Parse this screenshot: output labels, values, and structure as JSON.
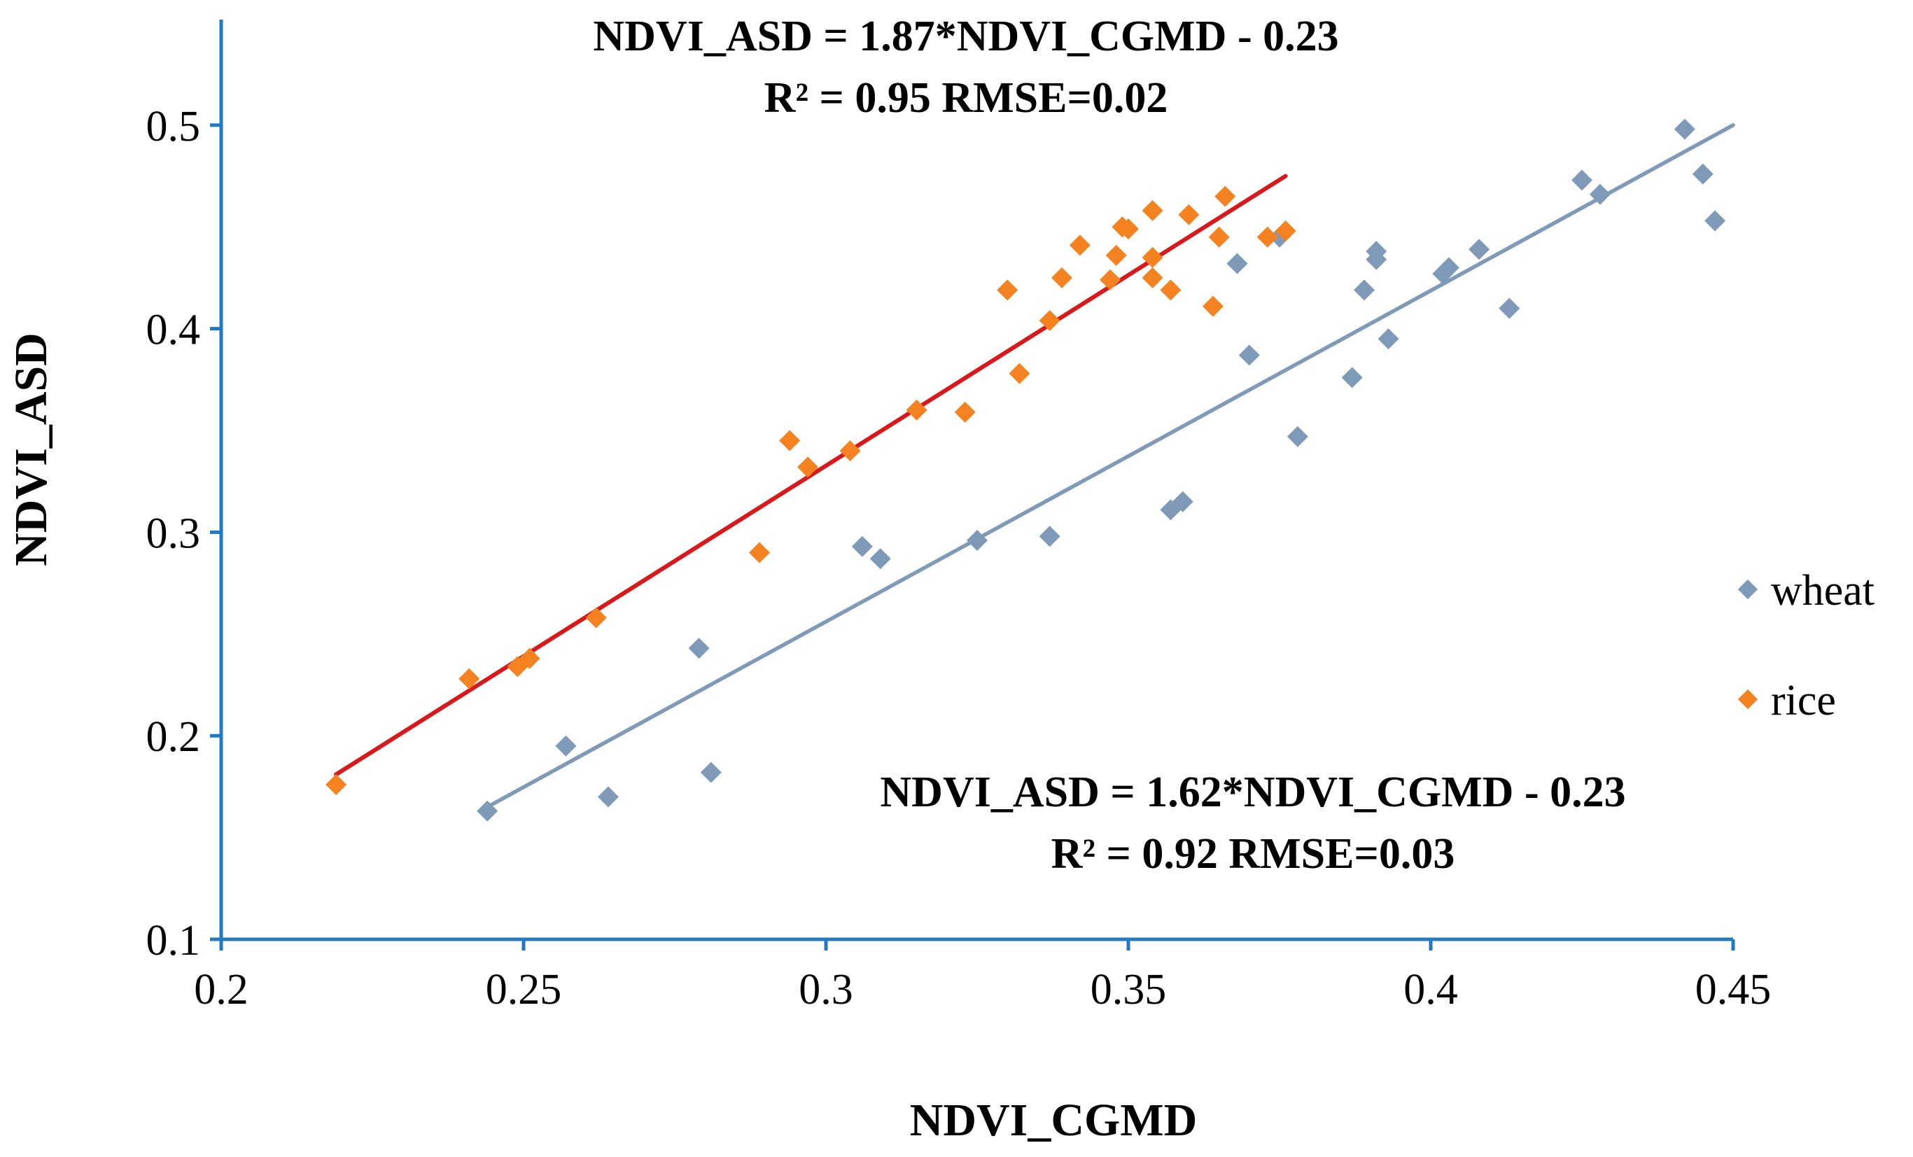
{
  "chart_data": {
    "type": "scatter",
    "title": "",
    "xlabel": "NDVI_CGMD",
    "ylabel": "NDVI_ASD",
    "xlim": [
      0.2,
      0.45
    ],
    "ylim": [
      0.1,
      0.55
    ],
    "x_ticks": [
      0.2,
      0.25,
      0.3,
      0.35,
      0.4,
      0.45
    ],
    "x_tick_labels": [
      "0.2",
      "0.25",
      "0.3",
      "0.35",
      "0.4",
      "0.45"
    ],
    "y_ticks": [
      0.1,
      0.2,
      0.3,
      0.4,
      0.5
    ],
    "y_tick_labels": [
      "0.1",
      "0.2",
      "0.3",
      "0.4",
      "0.5"
    ],
    "grid": false,
    "legend_position": "right",
    "series": [
      {
        "name": "wheat",
        "color": "#7F9AB8",
        "marker": "diamond",
        "points": [
          [
            0.244,
            0.163
          ],
          [
            0.257,
            0.195
          ],
          [
            0.264,
            0.17
          ],
          [
            0.279,
            0.243
          ],
          [
            0.281,
            0.182
          ],
          [
            0.306,
            0.293
          ],
          [
            0.309,
            0.287
          ],
          [
            0.325,
            0.296
          ],
          [
            0.337,
            0.298
          ],
          [
            0.357,
            0.311
          ],
          [
            0.359,
            0.315
          ],
          [
            0.368,
            0.432
          ],
          [
            0.37,
            0.387
          ],
          [
            0.375,
            0.445
          ],
          [
            0.378,
            0.347
          ],
          [
            0.387,
            0.376
          ],
          [
            0.389,
            0.419
          ],
          [
            0.391,
            0.438
          ],
          [
            0.391,
            0.434
          ],
          [
            0.393,
            0.395
          ],
          [
            0.402,
            0.427
          ],
          [
            0.403,
            0.43
          ],
          [
            0.408,
            0.439
          ],
          [
            0.413,
            0.41
          ],
          [
            0.425,
            0.473
          ],
          [
            0.428,
            0.466
          ],
          [
            0.442,
            0.498
          ],
          [
            0.445,
            0.476
          ],
          [
            0.447,
            0.453
          ]
        ],
        "trendline": {
          "x": [
            0.244,
            0.45
          ],
          "y": [
            0.165,
            0.5
          ]
        },
        "equation": "NDVI_ASD = 1.62*NDVI_CGMD - 0.23",
        "stats": "R² = 0.92  RMSE=0.03"
      },
      {
        "name": "rice",
        "color": "#F58220",
        "marker": "diamond",
        "points": [
          [
            0.219,
            0.176
          ],
          [
            0.241,
            0.228
          ],
          [
            0.249,
            0.234
          ],
          [
            0.251,
            0.238
          ],
          [
            0.262,
            0.258
          ],
          [
            0.289,
            0.29
          ],
          [
            0.294,
            0.345
          ],
          [
            0.297,
            0.332
          ],
          [
            0.304,
            0.34
          ],
          [
            0.315,
            0.36
          ],
          [
            0.323,
            0.359
          ],
          [
            0.33,
            0.419
          ],
          [
            0.332,
            0.378
          ],
          [
            0.337,
            0.404
          ],
          [
            0.339,
            0.425
          ],
          [
            0.342,
            0.441
          ],
          [
            0.347,
            0.424
          ],
          [
            0.348,
            0.436
          ],
          [
            0.349,
            0.45
          ],
          [
            0.35,
            0.449
          ],
          [
            0.354,
            0.458
          ],
          [
            0.354,
            0.435
          ],
          [
            0.354,
            0.425
          ],
          [
            0.357,
            0.419
          ],
          [
            0.36,
            0.456
          ],
          [
            0.364,
            0.411
          ],
          [
            0.365,
            0.445
          ],
          [
            0.366,
            0.465
          ],
          [
            0.373,
            0.445
          ],
          [
            0.376,
            0.448
          ]
        ],
        "trendline": {
          "x": [
            0.219,
            0.376
          ],
          "y": [
            0.181,
            0.475
          ]
        },
        "equation": "NDVI_ASD = 1.87*NDVI_CGMD - 0.23",
        "stats": "R² = 0.95  RMSE=0.02"
      }
    ],
    "annotations": [
      {
        "series": "rice",
        "line1": "NDVI_ASD = 1.87*NDVI_CGMD - 0.23",
        "line2": "R² = 0.95  RMSE=0.02"
      },
      {
        "series": "wheat",
        "line1": "NDVI_ASD = 1.62*NDVI_CGMD - 0.23",
        "line2": "R² = 0.92  RMSE=0.03"
      }
    ],
    "axis_color": "#1F7AC2",
    "trend_colors": {
      "rice": "#D9181C",
      "wheat": "#7F9AB8"
    }
  }
}
